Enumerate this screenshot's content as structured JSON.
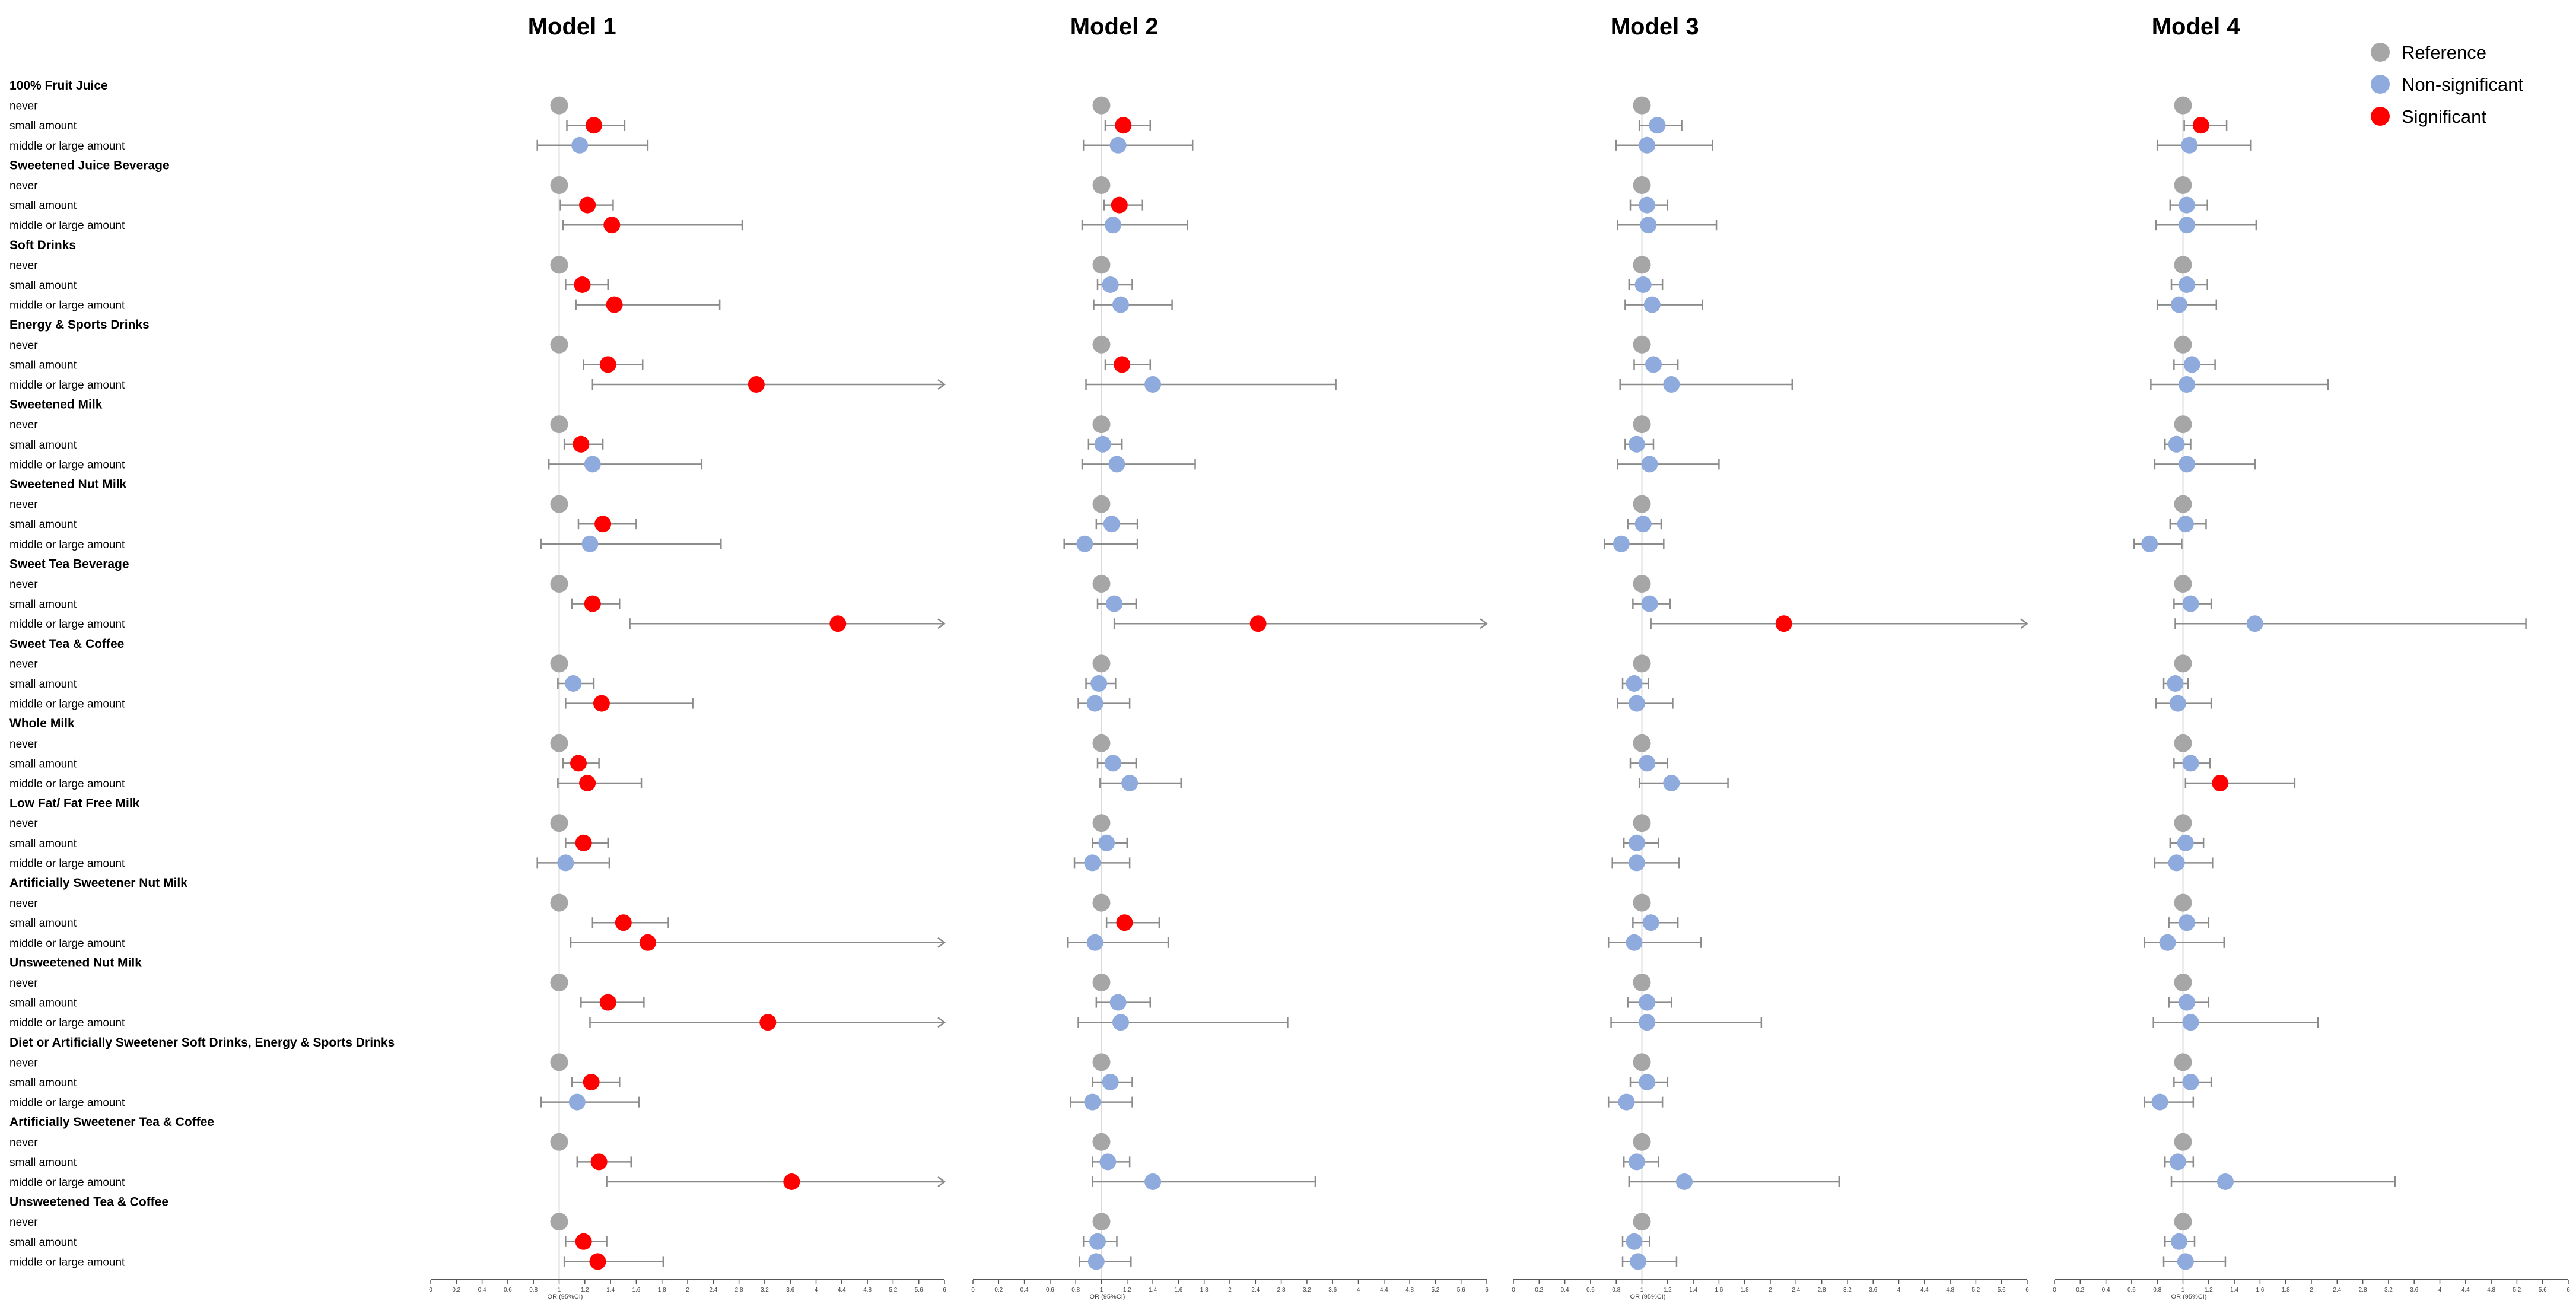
{
  "chart_data": {
    "type": "scatter",
    "subtype": "forest-plot",
    "levels": [
      "never",
      "small amount",
      "middle or large amount"
    ],
    "x_ticks": [
      "0",
      "0.2",
      "0.4",
      "0.6",
      "0.8",
      "1",
      "1.2",
      "1.4",
      "1.6",
      "1.8",
      "2",
      "2.4",
      "2.8",
      "3.2",
      "3.6",
      "4",
      "4.4",
      "4.8",
      "5.2",
      "5.6",
      "6"
    ],
    "xlabel": "OR (95%CI)",
    "legend": {
      "position": "top-right",
      "items": [
        {
          "label": "Reference",
          "color": "#a6a6a6"
        },
        {
          "label": "Non-significant",
          "color": "#8faadc"
        },
        {
          "label": "Significant",
          "color": "#ff0000"
        }
      ]
    },
    "colors": {
      "reference": "#a6a6a6",
      "non_significant": "#8faadc",
      "significant": "#ff0000",
      "ci_line": "#8c8c8c",
      "ref_line": "#d9d9d9"
    },
    "categories": [
      "100% Fruit Juice",
      "Sweetened Juice Beverage",
      "Soft Drinks",
      "Energy & Sports Drinks",
      "Sweetened Milk",
      "Sweetened Nut Milk",
      "Sweet Tea Beverage",
      "Sweet Tea & Coffee",
      "Whole Milk",
      "Low Fat/ Fat Free Milk",
      "Artificially Sweetener Nut Milk",
      "Unsweetened Nut Milk",
      "Diet or Artificially Sweetener Soft Drinks, Energy & Sports Drinks",
      "Artificially Sweetener Tea & Coffee",
      "Unsweetened Tea & Coffee"
    ],
    "models": [
      {
        "title": "Model 1",
        "estimates": [
          [
            [
              1.27,
              1.06,
              1.51,
              1
            ],
            [
              1.16,
              0.83,
              1.69,
              0
            ]
          ],
          [
            [
              1.22,
              1.01,
              1.42,
              1
            ],
            [
              1.41,
              1.03,
              2.85,
              1
            ]
          ],
          [
            [
              1.18,
              1.05,
              1.38,
              1
            ],
            [
              1.43,
              1.13,
              2.5,
              1
            ]
          ],
          [
            [
              1.38,
              1.19,
              1.65,
              1
            ],
            [
              3.07,
              1.26,
              6,
              1
            ]
          ],
          [
            [
              1.17,
              1.04,
              1.34,
              1
            ],
            [
              1.26,
              0.92,
              2.22,
              0
            ]
          ],
          [
            [
              1.34,
              1.15,
              1.6,
              1
            ],
            [
              1.24,
              0.86,
              2.52,
              0
            ]
          ],
          [
            [
              1.26,
              1.1,
              1.47,
              1
            ],
            [
              4.34,
              1.55,
              6,
              1
            ]
          ],
          [
            [
              1.11,
              0.99,
              1.27,
              0
            ],
            [
              1.33,
              1.05,
              2.08,
              1
            ]
          ],
          [
            [
              1.15,
              1.03,
              1.31,
              1
            ],
            [
              1.22,
              0.99,
              1.64,
              1
            ]
          ],
          [
            [
              1.19,
              1.05,
              1.38,
              1
            ],
            [
              1.05,
              0.83,
              1.39,
              0
            ]
          ],
          [
            [
              1.5,
              1.26,
              1.85,
              1
            ],
            [
              1.69,
              1.09,
              6,
              1
            ]
          ],
          [
            [
              1.38,
              1.17,
              1.66,
              1
            ],
            [
              3.25,
              1.24,
              6,
              1
            ]
          ],
          [
            [
              1.25,
              1.1,
              1.47,
              1
            ],
            [
              1.14,
              0.86,
              1.62,
              0
            ]
          ],
          [
            [
              1.31,
              1.14,
              1.56,
              1
            ],
            [
              3.62,
              1.37,
              6,
              1
            ]
          ],
          [
            [
              1.19,
              1.05,
              1.37,
              1
            ],
            [
              1.3,
              1.04,
              1.81,
              1
            ]
          ]
        ]
      },
      {
        "title": "Model 2",
        "estimates": [
          [
            [
              1.17,
              1.03,
              1.38,
              1
            ],
            [
              1.13,
              0.86,
              1.71,
              0
            ]
          ],
          [
            [
              1.14,
              1.02,
              1.32,
              1
            ],
            [
              1.09,
              0.85,
              1.67,
              0
            ]
          ],
          [
            [
              1.07,
              0.97,
              1.24,
              0
            ],
            [
              1.15,
              0.94,
              1.55,
              0
            ]
          ],
          [
            [
              1.16,
              1.03,
              1.38,
              1
            ],
            [
              1.4,
              0.88,
              3.65,
              0
            ]
          ],
          [
            [
              1.01,
              0.9,
              1.16,
              0
            ],
            [
              1.12,
              0.85,
              1.73,
              0
            ]
          ],
          [
            [
              1.08,
              0.96,
              1.28,
              0
            ],
            [
              0.87,
              0.71,
              1.28,
              0
            ]
          ],
          [
            [
              1.1,
              0.97,
              1.27,
              0
            ],
            [
              2.44,
              1.1,
              6,
              1
            ]
          ],
          [
            [
              0.98,
              0.88,
              1.11,
              0
            ],
            [
              0.95,
              0.82,
              1.22,
              0
            ]
          ],
          [
            [
              1.09,
              0.97,
              1.27,
              0
            ],
            [
              1.22,
              0.99,
              1.62,
              0
            ]
          ],
          [
            [
              1.04,
              0.93,
              1.2,
              0
            ],
            [
              0.93,
              0.79,
              1.22,
              0
            ]
          ],
          [
            [
              1.18,
              1.04,
              1.45,
              1
            ],
            [
              0.95,
              0.74,
              1.52,
              0
            ]
          ],
          [
            [
              1.13,
              0.96,
              1.38,
              0
            ],
            [
              1.15,
              0.82,
              2.9,
              0
            ]
          ],
          [
            [
              1.07,
              0.93,
              1.24,
              0
            ],
            [
              0.93,
              0.76,
              1.24,
              0
            ]
          ],
          [
            [
              1.05,
              0.93,
              1.22,
              0
            ],
            [
              1.4,
              0.93,
              3.33,
              0
            ]
          ],
          [
            [
              0.97,
              0.86,
              1.12,
              0
            ],
            [
              0.96,
              0.83,
              1.23,
              0
            ]
          ]
        ]
      },
      {
        "title": "Model 3",
        "estimates": [
          [
            [
              1.12,
              0.98,
              1.31,
              0
            ],
            [
              1.04,
              0.8,
              1.55,
              0
            ]
          ],
          [
            [
              1.04,
              0.91,
              1.2,
              0
            ],
            [
              1.05,
              0.81,
              1.58,
              0
            ]
          ],
          [
            [
              1.01,
              0.9,
              1.16,
              0
            ],
            [
              1.08,
              0.87,
              1.47,
              0
            ]
          ],
          [
            [
              1.09,
              0.94,
              1.28,
              0
            ],
            [
              1.23,
              0.83,
              2.34,
              0
            ]
          ],
          [
            [
              0.96,
              0.87,
              1.09,
              0
            ],
            [
              1.06,
              0.81,
              1.6,
              0
            ]
          ],
          [
            [
              1.01,
              0.89,
              1.15,
              0
            ],
            [
              0.84,
              0.71,
              1.17,
              0
            ]
          ],
          [
            [
              1.06,
              0.93,
              1.22,
              0
            ],
            [
              2.21,
              1.07,
              6,
              1
            ]
          ],
          [
            [
              0.94,
              0.85,
              1.05,
              0
            ],
            [
              0.96,
              0.81,
              1.24,
              0
            ]
          ],
          [
            [
              1.04,
              0.91,
              1.2,
              0
            ],
            [
              1.23,
              0.98,
              1.67,
              0
            ]
          ],
          [
            [
              0.96,
              0.86,
              1.13,
              0
            ],
            [
              0.96,
              0.77,
              1.29,
              0
            ]
          ],
          [
            [
              1.07,
              0.93,
              1.28,
              0
            ],
            [
              0.94,
              0.74,
              1.46,
              0
            ]
          ],
          [
            [
              1.04,
              0.89,
              1.23,
              0
            ],
            [
              1.04,
              0.76,
              1.93,
              0
            ]
          ],
          [
            [
              1.04,
              0.91,
              1.2,
              0
            ],
            [
              0.88,
              0.74,
              1.16,
              0
            ]
          ],
          [
            [
              0.96,
              0.86,
              1.13,
              0
            ],
            [
              1.33,
              0.9,
              3.07,
              0
            ]
          ],
          [
            [
              0.94,
              0.85,
              1.06,
              0
            ],
            [
              0.97,
              0.85,
              1.27,
              0
            ]
          ]
        ]
      },
      {
        "title": "Model 4",
        "estimates": [
          [
            [
              1.14,
              1.01,
              1.34,
              1
            ],
            [
              1.05,
              0.8,
              1.53,
              0
            ]
          ],
          [
            [
              1.03,
              0.9,
              1.19,
              0
            ],
            [
              1.03,
              0.79,
              1.57,
              0
            ]
          ],
          [
            [
              1.03,
              0.91,
              1.19,
              0
            ],
            [
              0.97,
              0.8,
              1.26,
              0
            ]
          ],
          [
            [
              1.07,
              0.93,
              1.25,
              0
            ],
            [
              1.03,
              0.75,
              2.26,
              0
            ]
          ],
          [
            [
              0.95,
              0.86,
              1.06,
              0
            ],
            [
              1.03,
              0.78,
              1.56,
              0
            ]
          ],
          [
            [
              1.02,
              0.9,
              1.18,
              0
            ],
            [
              0.74,
              0.62,
              0.99,
              0
            ]
          ],
          [
            [
              1.06,
              0.93,
              1.22,
              0
            ],
            [
              1.56,
              0.94,
              5.34,
              0
            ]
          ],
          [
            [
              0.94,
              0.85,
              1.04,
              0
            ],
            [
              0.96,
              0.79,
              1.22,
              0
            ]
          ],
          [
            [
              1.06,
              0.93,
              1.21,
              0
            ],
            [
              1.29,
              1.02,
              1.87,
              1
            ]
          ],
          [
            [
              1.02,
              0.9,
              1.16,
              0
            ],
            [
              0.95,
              0.78,
              1.23,
              0
            ]
          ],
          [
            [
              1.03,
              0.89,
              1.2,
              0
            ],
            [
              0.88,
              0.7,
              1.32,
              0
            ]
          ],
          [
            [
              1.03,
              0.89,
              1.2,
              0
            ],
            [
              1.06,
              0.77,
              2.1,
              0
            ]
          ],
          [
            [
              1.06,
              0.93,
              1.22,
              0
            ],
            [
              0.82,
              0.7,
              1.08,
              0
            ]
          ],
          [
            [
              0.96,
              0.86,
              1.08,
              0
            ],
            [
              1.33,
              0.91,
              3.3,
              0
            ]
          ],
          [
            [
              0.97,
              0.86,
              1.09,
              0
            ],
            [
              1.02,
              0.85,
              1.33,
              0
            ]
          ]
        ]
      }
    ]
  }
}
